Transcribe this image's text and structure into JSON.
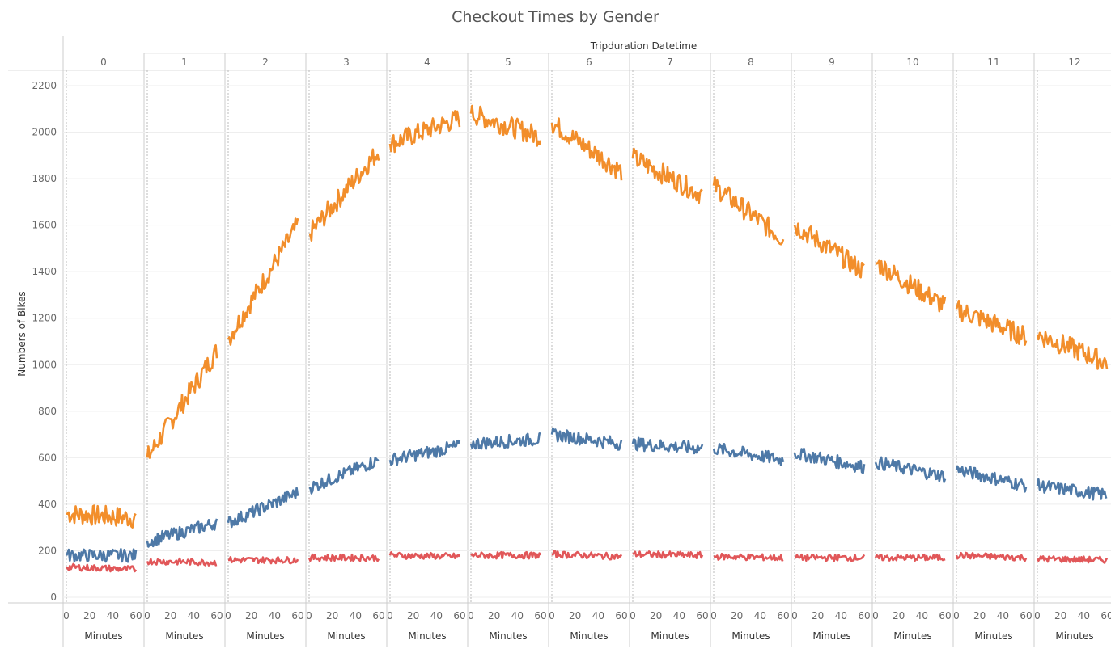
{
  "chart_data": {
    "type": "line",
    "title": "Checkout Times by Gender",
    "column_header": "Tripduration Datetime",
    "ylabel": "Numbers of Bikes",
    "xlabel": "Minutes",
    "ylim": [
      0,
      2200
    ],
    "yticks": [
      0,
      200,
      400,
      600,
      800,
      1000,
      1200,
      1400,
      1600,
      1800,
      2000,
      2200
    ],
    "xticks": [
      0,
      20,
      40,
      60
    ],
    "panels": [
      "0",
      "1",
      "2",
      "3",
      "4",
      "5",
      "6",
      "7",
      "8",
      "9",
      "10",
      "11",
      "12"
    ],
    "grid": true,
    "legend": "none",
    "colors": {
      "orange": "#f28e2b",
      "blue": "#4e79a7",
      "red": "#e15759",
      "grid": "#eeeeee",
      "divider": "#cccccc"
    },
    "series": [
      {
        "color": "#f28e2b",
        "values": [
          [
            360,
            340
          ],
          [
            600,
            1060
          ],
          [
            1110,
            1600
          ],
          [
            1560,
            1920
          ],
          [
            1950,
            2060
          ],
          [
            2080,
            1980
          ],
          [
            2040,
            1830
          ],
          [
            1890,
            1730
          ],
          [
            1770,
            1540
          ],
          [
            1600,
            1400
          ],
          [
            1440,
            1250
          ],
          [
            1240,
            1120
          ],
          [
            1130,
            1010
          ]
        ]
      },
      {
        "color": "#4e79a7",
        "values": [
          [
            180,
            180
          ],
          [
            240,
            320
          ],
          [
            320,
            450
          ],
          [
            470,
            590
          ],
          [
            590,
            650
          ],
          [
            660,
            680
          ],
          [
            700,
            660
          ],
          [
            660,
            640
          ],
          [
            640,
            590
          ],
          [
            620,
            560
          ],
          [
            580,
            520
          ],
          [
            550,
            480
          ],
          [
            480,
            440
          ]
        ]
      },
      {
        "color": "#e15759",
        "values": [
          [
            130,
            120
          ],
          [
            155,
            150
          ],
          [
            160,
            160
          ],
          [
            170,
            170
          ],
          [
            180,
            175
          ],
          [
            180,
            180
          ],
          [
            185,
            175
          ],
          [
            185,
            180
          ],
          [
            175,
            170
          ],
          [
            170,
            170
          ],
          [
            170,
            170
          ],
          [
            180,
            170
          ],
          [
            165,
            160
          ]
        ]
      }
    ]
  }
}
